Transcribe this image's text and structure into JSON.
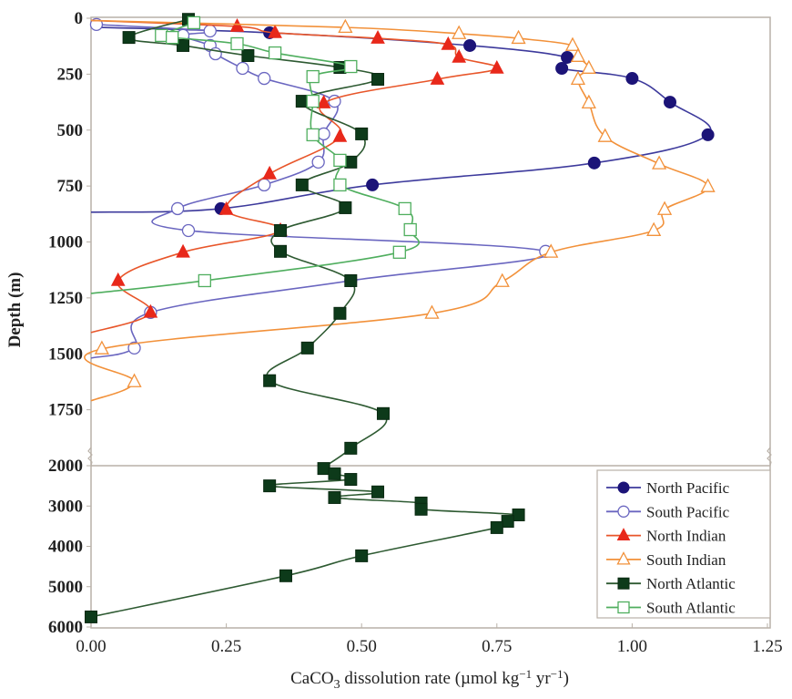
{
  "chart_data": {
    "type": "line",
    "title": "",
    "xlabel": "CaCO3 dissolution rate (µmol kg-1 yr-1)",
    "xlabel_parts": {
      "pre": "CaCO",
      "sub": "3",
      "post": " dissolution rate (µmol kg",
      "sup1": "−1",
      "mid": " yr",
      "sup2": "−1",
      "end": ")"
    },
    "ylabel": "Depth (m)",
    "xlim": [
      0,
      1.25
    ],
    "xticks": [
      "0.00",
      "0.25",
      "0.50",
      "0.75",
      "1.00",
      "1.25"
    ],
    "xtick_values": [
      0,
      0.25,
      0.5,
      0.75,
      1.0,
      1.25
    ],
    "ylim_upper": [
      0,
      2000
    ],
    "ylim_lower": [
      2000,
      6000
    ],
    "yticks_upper": [
      "0",
      "250",
      "500",
      "750",
      "1000",
      "1250",
      "1500",
      "1750",
      "2000"
    ],
    "ytick_values_upper": [
      0,
      250,
      500,
      750,
      1000,
      1250,
      1500,
      1750,
      2000
    ],
    "yticks_lower": [
      "3000",
      "4000",
      "5000",
      "6000"
    ],
    "ytick_values_lower": [
      3000,
      4000,
      5000,
      6000
    ],
    "y_axis_inverted": true,
    "y_axis_break": "2000",
    "grid": false,
    "legend_position": "bottom-right",
    "series": [
      {
        "name": "North Pacific",
        "color": "#3d3a9c",
        "marker": "circle",
        "filled": true,
        "fill": "#1c1478",
        "line_start": [
          0.0,
          40
        ],
        "line_end": [
          0.0,
          867
        ],
        "points": [
          [
            0.33,
            65
          ],
          [
            0.7,
            122
          ],
          [
            0.88,
            175
          ],
          [
            0.87,
            224
          ],
          [
            1.0,
            269
          ],
          [
            1.07,
            375
          ],
          [
            1.14,
            521
          ],
          [
            0.93,
            647
          ],
          [
            0.52,
            745
          ],
          [
            0.24,
            851
          ]
        ]
      },
      {
        "name": "South Pacific",
        "color": "#6a66c0",
        "marker": "circle",
        "filled": false,
        "fill": "#ffffff",
        "line_start": null,
        "line_end": [
          0.0,
          1519
        ],
        "points": [
          [
            0.01,
            28
          ],
          [
            0.22,
            57
          ],
          [
            0.17,
            77
          ],
          [
            0.22,
            122
          ],
          [
            0.23,
            159
          ],
          [
            0.28,
            224
          ],
          [
            0.32,
            269
          ],
          [
            0.45,
            371
          ],
          [
            0.43,
            517
          ],
          [
            0.42,
            643
          ],
          [
            0.32,
            745
          ],
          [
            0.16,
            851
          ],
          [
            0.18,
            949
          ],
          [
            0.84,
            1042
          ],
          [
            0.48,
            1173
          ],
          [
            0.11,
            1315
          ],
          [
            0.08,
            1474
          ]
        ]
      },
      {
        "name": "North Indian",
        "color": "#e8562a",
        "marker": "triangle",
        "filled": true,
        "fill": "#e8281a",
        "line_start": [
          0.0,
          10
        ],
        "line_end": [
          0.0,
          1405
        ],
        "points": [
          [
            0.27,
            37
          ],
          [
            0.34,
            65
          ],
          [
            0.53,
            90
          ],
          [
            0.66,
            118
          ],
          [
            0.68,
            175
          ],
          [
            0.75,
            224
          ],
          [
            0.64,
            273
          ],
          [
            0.43,
            379
          ],
          [
            0.46,
            529
          ],
          [
            0.33,
            696
          ],
          [
            0.25,
            855
          ],
          [
            0.35,
            949
          ],
          [
            0.17,
            1046
          ],
          [
            0.05,
            1173
          ],
          [
            0.11,
            1315
          ]
        ]
      },
      {
        "name": "South Indian",
        "color": "#f2913a",
        "marker": "triangle",
        "filled": false,
        "fill": "#ffffff",
        "line_start": [
          0.0,
          10
        ],
        "line_end": [
          0.0,
          1710
        ],
        "points": [
          [
            0.47,
            41
          ],
          [
            0.68,
            69
          ],
          [
            0.79,
            90
          ],
          [
            0.89,
            122
          ],
          [
            0.9,
            171
          ],
          [
            0.92,
            224
          ],
          [
            0.9,
            273
          ],
          [
            0.92,
            379
          ],
          [
            0.95,
            529
          ],
          [
            1.05,
            651
          ],
          [
            1.14,
            753
          ],
          [
            1.06,
            855
          ],
          [
            1.04,
            949
          ],
          [
            0.85,
            1046
          ],
          [
            0.76,
            1177
          ],
          [
            0.63,
            1319
          ],
          [
            0.02,
            1478
          ],
          [
            0.08,
            1625
          ]
        ]
      },
      {
        "name": "North Atlantic",
        "color": "#2e5a32",
        "marker": "square",
        "filled": true,
        "fill": "#0d3a1a",
        "line_start": null,
        "line_end": null,
        "points": [
          [
            0.18,
            5
          ],
          [
            0.07,
            86
          ],
          [
            0.17,
            122
          ],
          [
            0.29,
            167
          ],
          [
            0.46,
            220
          ],
          [
            0.53,
            273
          ],
          [
            0.39,
            371
          ],
          [
            0.5,
            517
          ],
          [
            0.48,
            643
          ],
          [
            0.39,
            745
          ],
          [
            0.47,
            847
          ],
          [
            0.35,
            949
          ],
          [
            0.35,
            1042
          ],
          [
            0.48,
            1173
          ],
          [
            0.46,
            1319
          ],
          [
            0.4,
            1474
          ],
          [
            0.33,
            1620
          ],
          [
            0.54,
            1767
          ],
          [
            0.48,
            1922
          ],
          [
            0.43,
            2070
          ],
          [
            0.45,
            2200
          ],
          [
            0.48,
            2340
          ],
          [
            0.33,
            2500
          ],
          [
            0.53,
            2650
          ],
          [
            0.45,
            2790
          ],
          [
            0.61,
            2925
          ],
          [
            0.61,
            3080
          ],
          [
            0.79,
            3220
          ],
          [
            0.77,
            3380
          ],
          [
            0.75,
            3535
          ],
          [
            0.5,
            4235
          ],
          [
            0.36,
            4730
          ],
          [
            0.0,
            5750
          ]
        ]
      },
      {
        "name": "South Atlantic",
        "color": "#4fae5e",
        "marker": "square",
        "filled": false,
        "fill": "#ffffff",
        "line_start": null,
        "line_end": [
          0.0,
          1230
        ],
        "points": [
          [
            0.19,
            20
          ],
          [
            0.13,
            77
          ],
          [
            0.15,
            86
          ],
          [
            0.27,
            114
          ],
          [
            0.34,
            155
          ],
          [
            0.48,
            216
          ],
          [
            0.41,
            261
          ],
          [
            0.41,
            371
          ],
          [
            0.41,
            521
          ],
          [
            0.46,
            635
          ],
          [
            0.46,
            745
          ],
          [
            0.58,
            851
          ],
          [
            0.59,
            945
          ],
          [
            0.57,
            1046
          ],
          [
            0.21,
            1173
          ]
        ]
      }
    ]
  }
}
